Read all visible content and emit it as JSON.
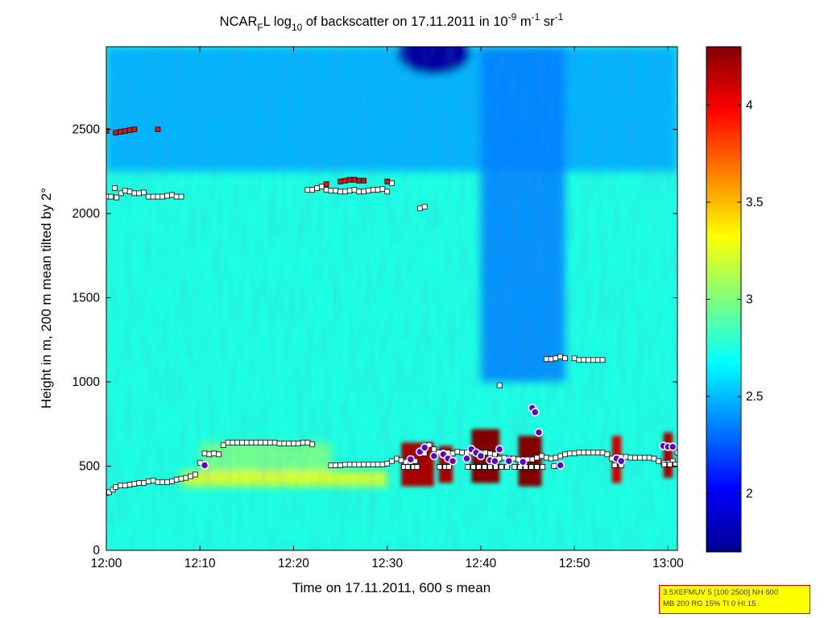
{
  "chart_data": {
    "type": "heatmap",
    "title": {
      "prefix": "NCAR",
      "prefix_sub": "F",
      "mid1": "L log",
      "mid1_sub": "10",
      "mid2": " of backscatter on 17.11.2011 in 10",
      "exp1": "-9",
      "mid3": " m",
      "exp2": "-1",
      "mid4": " sr",
      "exp3": "-1"
    },
    "xlabel": "Time on 17.11.2011, 600 s mean",
    "ylabel": "Height in m, 200 m mean tilted by 2°",
    "x_ticks": [
      "12:00",
      "12:10",
      "12:20",
      "12:30",
      "12:40",
      "12:50",
      "13:00"
    ],
    "x_tick_values": [
      0,
      10,
      20,
      30,
      40,
      50,
      60
    ],
    "x_range_minutes": [
      0,
      61
    ],
    "y_ticks": [
      0,
      500,
      1000,
      1500,
      2000,
      2500
    ],
    "y_range": [
      0,
      2990
    ],
    "colorbar": {
      "ticks": [
        2,
        2.5,
        3,
        3.5,
        4
      ],
      "range": [
        1.7,
        4.3
      ],
      "colormap": "jet"
    },
    "background_value": 2.75,
    "features": [
      {
        "name": "upper-low-layer",
        "t_range": [
          0,
          61
        ],
        "h_range": [
          2250,
          2990
        ],
        "value": 2.45
      },
      {
        "name": "dark-blob-top",
        "t_center": 35,
        "h_center": 2950,
        "value": 1.75
      },
      {
        "name": "dark-column",
        "t_range": [
          40,
          49
        ],
        "h_range": [
          1000,
          2990
        ],
        "value": 2.35
      },
      {
        "name": "boundary-layer",
        "t_range": [
          10,
          24
        ],
        "h_range": [
          420,
          640
        ],
        "value": 3.0
      },
      {
        "name": "ground-warm",
        "t_range": [
          8,
          30
        ],
        "h_range": [
          380,
          470
        ],
        "value": 3.3
      }
    ],
    "strong_echoes": [
      {
        "t_range": [
          31.5,
          35
        ],
        "h_range": [
          380,
          640
        ],
        "value": 4.2
      },
      {
        "t_range": [
          35.5,
          37
        ],
        "h_range": [
          400,
          620
        ],
        "value": 4.2
      },
      {
        "t_range": [
          39,
          42
        ],
        "h_range": [
          400,
          720
        ],
        "value": 4.3
      },
      {
        "t_range": [
          44,
          46.5
        ],
        "h_range": [
          380,
          680
        ],
        "value": 4.3
      },
      {
        "t_range": [
          54,
          55
        ],
        "h_range": [
          400,
          680
        ],
        "value": 4.1
      },
      {
        "t_range": [
          59.5,
          60.5
        ],
        "h_range": [
          430,
          700
        ],
        "value": 4.2
      }
    ],
    "series": [
      {
        "name": "layer-top-markers",
        "style": "white-square",
        "points": [
          [
            0,
            340
          ],
          [
            0.3,
            345
          ],
          [
            0.7,
            360
          ],
          [
            1,
            375
          ],
          [
            1.5,
            385
          ],
          [
            2,
            385
          ],
          [
            2.5,
            390
          ],
          [
            3,
            395
          ],
          [
            3.5,
            400
          ],
          [
            4,
            400
          ],
          [
            4.5,
            410
          ],
          [
            5,
            415
          ],
          [
            5.5,
            405
          ],
          [
            6,
            405
          ],
          [
            6.5,
            405
          ],
          [
            7,
            410
          ],
          [
            7.5,
            420
          ],
          [
            8,
            425
          ],
          [
            8.5,
            430
          ],
          [
            9,
            440
          ],
          [
            9.5,
            450
          ],
          [
            10,
            520
          ],
          [
            10.5,
            575
          ],
          [
            11,
            570
          ],
          [
            11.5,
            575
          ],
          [
            12,
            570
          ],
          [
            12.5,
            625
          ],
          [
            13,
            640
          ],
          [
            13.5,
            640
          ],
          [
            14,
            640
          ],
          [
            14.5,
            640
          ],
          [
            15,
            640
          ],
          [
            15.5,
            640
          ],
          [
            16,
            640
          ],
          [
            16.5,
            640
          ],
          [
            17,
            640
          ],
          [
            17.5,
            640
          ],
          [
            18,
            640
          ],
          [
            18.5,
            635
          ],
          [
            19,
            635
          ],
          [
            19.5,
            635
          ],
          [
            20,
            635
          ],
          [
            20.5,
            635
          ],
          [
            21,
            640
          ],
          [
            21.5,
            640
          ],
          [
            22,
            630
          ],
          [
            24,
            505
          ],
          [
            24.5,
            505
          ],
          [
            25,
            505
          ],
          [
            25.5,
            510
          ],
          [
            26,
            510
          ],
          [
            26.5,
            510
          ],
          [
            27,
            510
          ],
          [
            27.5,
            510
          ],
          [
            28,
            510
          ],
          [
            28.5,
            510
          ],
          [
            29,
            510
          ],
          [
            29.5,
            510
          ],
          [
            30,
            515
          ],
          [
            30.5,
            530
          ],
          [
            31,
            545
          ],
          [
            31.5,
            535
          ],
          [
            32,
            525
          ],
          [
            32.5,
            525
          ],
          [
            33,
            530
          ],
          [
            34,
            575
          ],
          [
            34.5,
            625
          ],
          [
            35,
            600
          ],
          [
            35.5,
            580
          ],
          [
            36,
            585
          ],
          [
            36.5,
            580
          ],
          [
            37,
            575
          ],
          [
            37.5,
            585
          ],
          [
            38,
            580
          ],
          [
            38.5,
            580
          ],
          [
            39,
            580
          ],
          [
            39.5,
            585
          ],
          [
            40,
            580
          ],
          [
            40.5,
            580
          ],
          [
            41,
            575
          ],
          [
            41.5,
            570
          ],
          [
            42,
            545
          ],
          [
            42.5,
            550
          ],
          [
            43,
            545
          ],
          [
            43.5,
            545
          ],
          [
            44,
            540
          ],
          [
            44.5,
            540
          ],
          [
            45,
            540
          ],
          [
            45.5,
            540
          ],
          [
            46,
            550
          ],
          [
            46.5,
            560
          ],
          [
            47,
            550
          ],
          [
            47.5,
            545
          ],
          [
            48,
            550
          ],
          [
            48.5,
            560
          ],
          [
            49,
            570
          ],
          [
            49.5,
            575
          ],
          [
            50,
            575
          ],
          [
            50.5,
            580
          ],
          [
            51,
            580
          ],
          [
            51.5,
            580
          ],
          [
            52,
            580
          ],
          [
            52.5,
            580
          ],
          [
            53,
            580
          ],
          [
            53.5,
            570
          ],
          [
            54,
            545
          ],
          [
            54.5,
            545
          ],
          [
            55,
            555
          ],
          [
            55.5,
            555
          ],
          [
            56,
            550
          ],
          [
            56.5,
            550
          ],
          [
            57,
            550
          ],
          [
            57.5,
            550
          ],
          [
            58,
            550
          ],
          [
            58.5,
            545
          ],
          [
            59,
            530
          ],
          [
            59.5,
            520
          ],
          [
            60,
            520
          ],
          [
            60.5,
            530
          ],
          [
            61,
            580
          ]
        ]
      },
      {
        "name": "lower-base-markers",
        "style": "white-square",
        "points": [
          [
            31.8,
            495
          ],
          [
            32.2,
            495
          ],
          [
            32.8,
            495
          ],
          [
            33.2,
            495
          ],
          [
            35.6,
            495
          ],
          [
            36.2,
            495
          ],
          [
            36.6,
            495
          ],
          [
            38.6,
            495
          ],
          [
            39.2,
            495
          ],
          [
            39.8,
            495
          ],
          [
            40.4,
            495
          ],
          [
            41,
            495
          ],
          [
            41.6,
            495
          ],
          [
            42.2,
            495
          ],
          [
            42.8,
            495
          ],
          [
            43.6,
            495
          ],
          [
            44.2,
            495
          ],
          [
            44.8,
            495
          ],
          [
            45.4,
            495
          ],
          [
            46,
            495
          ],
          [
            46.6,
            495
          ],
          [
            47.8,
            500
          ],
          [
            48.4,
            500
          ],
          [
            54.3,
            505
          ],
          [
            55,
            505
          ],
          [
            59.6,
            510
          ],
          [
            60.2,
            510
          ],
          [
            60.8,
            510
          ]
        ]
      },
      {
        "name": "mid-cloud-markers",
        "style": "white-square",
        "points": [
          [
            0,
            2100
          ],
          [
            0.5,
            2100
          ],
          [
            0.9,
            2150
          ],
          [
            1.1,
            2095
          ],
          [
            1.6,
            2120
          ],
          [
            2,
            2135
          ],
          [
            2.5,
            2130
          ],
          [
            3,
            2120
          ],
          [
            3.5,
            2120
          ],
          [
            4,
            2125
          ],
          [
            4.5,
            2100
          ],
          [
            5,
            2100
          ],
          [
            5.5,
            2100
          ],
          [
            6,
            2100
          ],
          [
            6.5,
            2105
          ],
          [
            7,
            2110
          ],
          [
            7.5,
            2100
          ],
          [
            8,
            2100
          ],
          [
            21.5,
            2140
          ],
          [
            22,
            2140
          ],
          [
            22.5,
            2150
          ],
          [
            23,
            2160
          ],
          [
            23.5,
            2140
          ],
          [
            24,
            2135
          ],
          [
            24.5,
            2135
          ],
          [
            25,
            2130
          ],
          [
            25.5,
            2130
          ],
          [
            26,
            2135
          ],
          [
            26.5,
            2140
          ],
          [
            27,
            2130
          ],
          [
            27.5,
            2130
          ],
          [
            28,
            2135
          ],
          [
            28.5,
            2140
          ],
          [
            29,
            2140
          ],
          [
            29.5,
            2145
          ],
          [
            30,
            2130
          ],
          [
            30.5,
            2180
          ],
          [
            33.5,
            2030
          ],
          [
            34,
            2040
          ],
          [
            47,
            1135
          ],
          [
            47.5,
            1135
          ],
          [
            48,
            1140
          ],
          [
            48.5,
            1150
          ],
          [
            49,
            1140
          ],
          [
            50,
            1140
          ],
          [
            50.5,
            1130
          ],
          [
            51,
            1130
          ],
          [
            51.5,
            1130
          ],
          [
            52,
            1130
          ],
          [
            52.5,
            1130
          ],
          [
            53,
            1130
          ],
          [
            42,
            980
          ]
        ]
      },
      {
        "name": "high-cloud-markers",
        "style": "red-square",
        "points": [
          [
            0,
            2490
          ],
          [
            1,
            2480
          ],
          [
            1.5,
            2485
          ],
          [
            2,
            2490
          ],
          [
            2.5,
            2495
          ],
          [
            3,
            2500
          ],
          [
            5.5,
            2500
          ],
          [
            23.5,
            2175
          ],
          [
            25,
            2190
          ],
          [
            25.5,
            2195
          ],
          [
            26,
            2200
          ],
          [
            26.5,
            2200
          ],
          [
            27,
            2195
          ],
          [
            27.5,
            2195
          ],
          [
            30,
            2190
          ]
        ]
      },
      {
        "name": "cloud-base-circles",
        "style": "purple-circle",
        "points": [
          [
            10.5,
            505
          ],
          [
            32.5,
            540
          ],
          [
            33.5,
            585
          ],
          [
            34,
            610
          ],
          [
            35,
            560
          ],
          [
            36,
            570
          ],
          [
            36.5,
            545
          ],
          [
            37,
            530
          ],
          [
            38.5,
            545
          ],
          [
            39,
            600
          ],
          [
            39.5,
            580
          ],
          [
            40,
            560
          ],
          [
            41,
            535
          ],
          [
            41.5,
            530
          ],
          [
            42,
            600
          ],
          [
            43,
            530
          ],
          [
            44.5,
            525
          ],
          [
            45.5,
            845
          ],
          [
            45.8,
            820
          ],
          [
            46.2,
            700
          ],
          [
            48.5,
            505
          ],
          [
            54.5,
            545
          ],
          [
            55,
            530
          ],
          [
            59.5,
            620
          ],
          [
            60,
            615
          ],
          [
            60.5,
            615
          ]
        ]
      }
    ]
  },
  "info_box": {
    "line1": "3.5XEFMUV 5 [100 2500] NH 600",
    "line2": "MB 200 RG 15% TI 0 HI 15"
  }
}
